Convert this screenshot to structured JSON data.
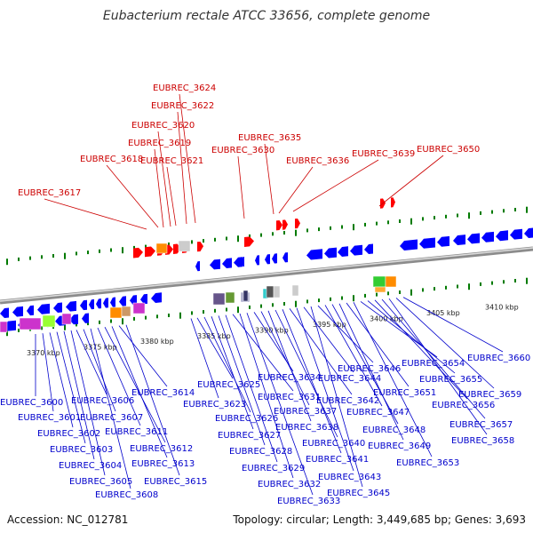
{
  "title": "Eubacterium rectale ATCC 33656, complete genome",
  "accession": "Accession: NC_012781",
  "summary": "Topology: circular; Length: 3,449,685 bp; Genes: 3,693",
  "colors": {
    "forward_arrow": "#ff0000",
    "reverse_arrow": "#0000ff",
    "forward_label": "#cc0000",
    "reverse_label": "#0000cc",
    "backbone": "#8c8c8c",
    "tick": "#007a00"
  },
  "kbp_ticks": [
    "3370 kbp",
    "3375 kbp",
    "3380 kbp",
    "3385 kbp",
    "3390 kbp",
    "3395 kbp",
    "3400 kbp",
    "3405 kbp",
    "3410 kbp"
  ],
  "forward_genes": [
    "EUBREC_3617",
    "EUBREC_3618",
    "EUBREC_3619",
    "EUBREC_3620",
    "EUBREC_3621",
    "EUBREC_3622",
    "EUBREC_3624",
    "EUBREC_3630",
    "EUBREC_3635",
    "EUBREC_3636",
    "EUBREC_3639",
    "EUBREC_3650"
  ],
  "reverse_genes": [
    "EUBREC_3600",
    "EUBREC_3601",
    "EUBREC_3602",
    "EUBREC_3603",
    "EUBREC_3604",
    "EUBREC_3605",
    "EUBREC_3606",
    "EUBREC_3607",
    "EUBREC_3608",
    "EUBREC_3611",
    "EUBREC_3612",
    "EUBREC_3613",
    "EUBREC_3614",
    "EUBREC_3615",
    "EUBREC_3623",
    "EUBREC_3625",
    "EUBREC_3626",
    "EUBREC_3627",
    "EUBREC_3628",
    "EUBREC_3629",
    "EUBREC_3631",
    "EUBREC_3632",
    "EUBREC_3633",
    "EUBREC_3634",
    "EUBREC_3637",
    "EUBREC_3638",
    "EUBREC_3640",
    "EUBREC_3641",
    "EUBREC_3642",
    "EUBREC_3643",
    "EUBREC_3644",
    "EUBREC_3645",
    "EUBREC_3646",
    "EUBREC_3647",
    "EUBREC_3648",
    "EUBREC_3649",
    "EUBREC_3651",
    "EUBREC_3653",
    "EUBREC_3654",
    "EUBREC_3655",
    "EUBREC_3656",
    "EUBREC_3657",
    "EUBREC_3658",
    "EUBREC_3659",
    "EUBREC_3660"
  ]
}
